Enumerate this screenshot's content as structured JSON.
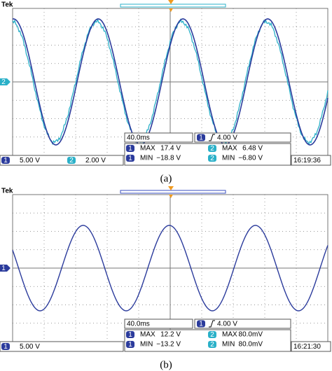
{
  "panels": [
    {
      "brand": "Tek",
      "marker": "2",
      "timebase": "40.0ms",
      "trigger_channel": "1",
      "trigger": "4.00 V",
      "measurements": [
        {
          "channel": "1",
          "max_label": "MAX",
          "max": "17.4 V",
          "min_label": "MIN",
          "min": "−18.8 V"
        },
        {
          "channel": "2",
          "max_label": "MAX",
          "max": "6.48 V",
          "min_label": "MIN",
          "min": "−6.80 V"
        }
      ],
      "channels": [
        {
          "label": "1",
          "scale": "5.00 V"
        },
        {
          "label": "2",
          "scale": "2.00 V"
        }
      ],
      "time": "16:19:36",
      "caption": "(a)"
    },
    {
      "brand": "Tek",
      "marker": "1",
      "timebase": "40.0ms",
      "trigger_channel": "1",
      "trigger": "4.00 V",
      "measurements": [
        {
          "channel": "1",
          "max_label": "MAX",
          "max": "12.2 V",
          "min_label": "MIN",
          "min": "−13.2 V"
        },
        {
          "channel": "2",
          "max_label": "MAX",
          "max": "80.0mV",
          "min_label": "MIN",
          "min": "80.0mV"
        }
      ],
      "channels": [
        {
          "label": "1",
          "scale": "5.00 V"
        }
      ],
      "time": "16:21:30",
      "caption": "(b)"
    }
  ]
}
